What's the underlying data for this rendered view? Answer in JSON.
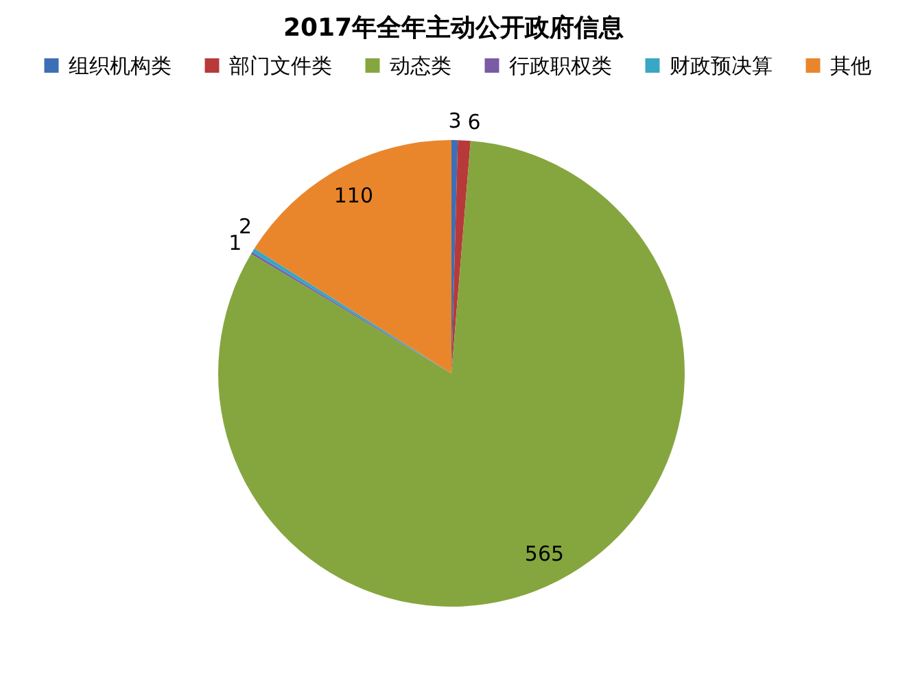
{
  "chart_data": {
    "type": "pie",
    "title": "2017年全年主动公开政府信息",
    "categories": [
      "组织机构类",
      "部门文件类",
      "动态类",
      "行政职权类",
      "财政预决算",
      "其他"
    ],
    "values": [
      3,
      6,
      565,
      1,
      2,
      110
    ],
    "colors": [
      "#3d6fb6",
      "#b8393a",
      "#85a63e",
      "#7a5ba5",
      "#38a6c4",
      "#e9862c"
    ],
    "data_labels": true,
    "legend": "top"
  }
}
